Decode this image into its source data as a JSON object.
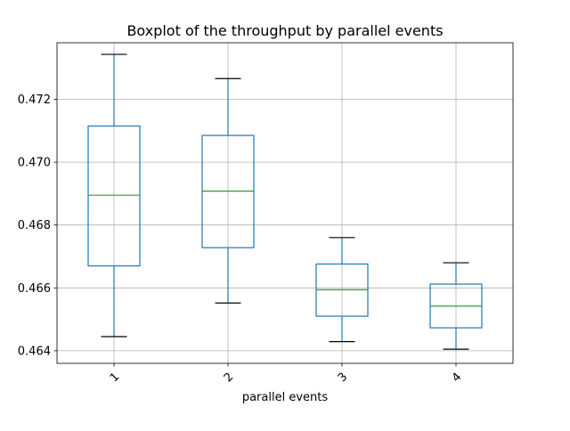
{
  "chart_data": {
    "type": "boxplot",
    "title": "Boxplot of the throughput by parallel events",
    "xlabel": "parallel events",
    "ylabel": "",
    "categories": [
      "1",
      "2",
      "3",
      "4"
    ],
    "ylim": [
      0.4636,
      0.4738
    ],
    "yticks": [
      0.464,
      0.466,
      0.468,
      0.47,
      0.472
    ],
    "ytick_labels": [
      "0.464",
      "0.466",
      "0.468",
      "0.470",
      "0.472"
    ],
    "grid": true,
    "boxes": [
      {
        "category": "1",
        "whisker_low": 0.46445,
        "q1": 0.4667,
        "median": 0.46895,
        "q3": 0.47115,
        "whisker_high": 0.47343
      },
      {
        "category": "2",
        "whisker_low": 0.46552,
        "q1": 0.46728,
        "median": 0.46908,
        "q3": 0.47085,
        "whisker_high": 0.47266
      },
      {
        "category": "3",
        "whisker_low": 0.46429,
        "q1": 0.4651,
        "median": 0.46594,
        "q3": 0.46676,
        "whisker_high": 0.4676
      },
      {
        "category": "4",
        "whisker_low": 0.46405,
        "q1": 0.46473,
        "median": 0.46542,
        "q3": 0.46612,
        "whisker_high": 0.4668
      }
    ],
    "colors": {
      "box": "#1f77b4",
      "median": "#2ca02c",
      "cap": "#000000",
      "grid": "#b0b0b0",
      "axis": "#000000"
    }
  }
}
